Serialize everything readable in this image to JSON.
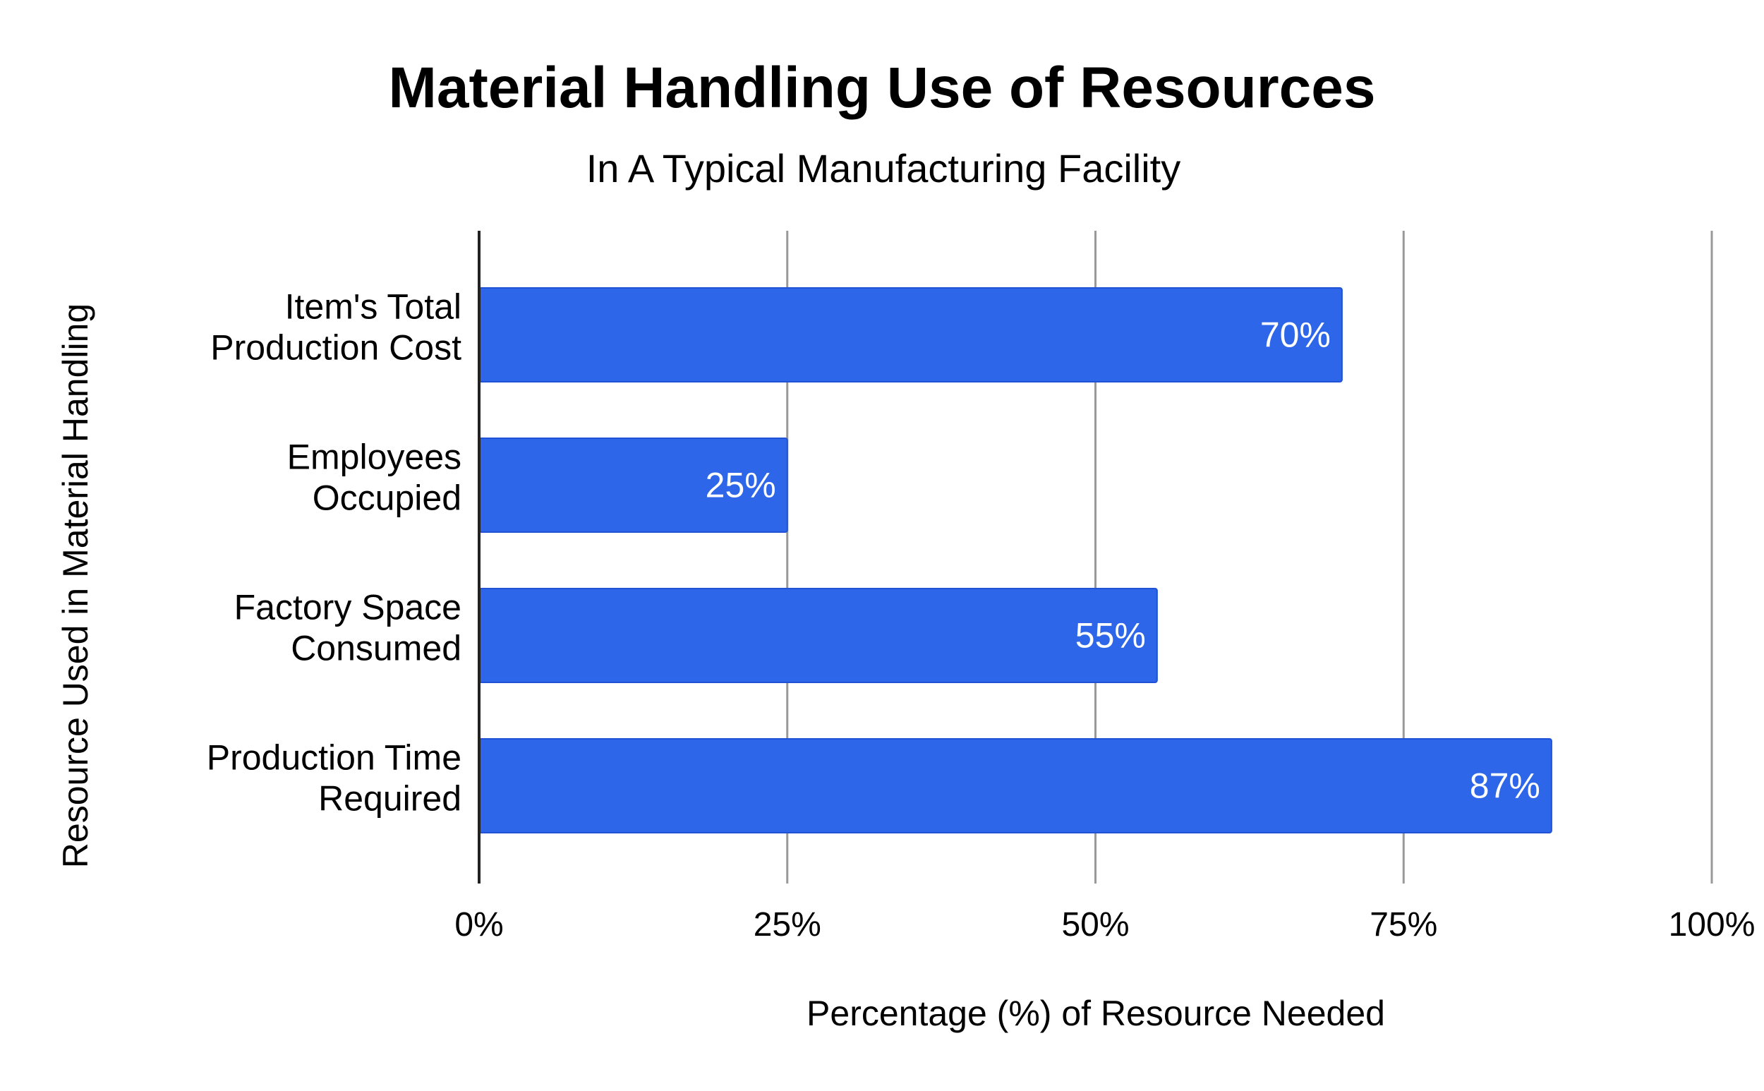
{
  "chart_data": {
    "type": "bar",
    "orientation": "horizontal",
    "title": "Material Handling Use of Resources",
    "subtitle": "In A Typical Manufacturing Facility",
    "xlabel": "Percentage (%) of Resource Needed",
    "ylabel": "Resource Used in Material Handling",
    "categories": [
      [
        "Item's Total",
        "Production Cost"
      ],
      [
        "Employees",
        "Occupied"
      ],
      [
        "Factory Space",
        "Consumed"
      ],
      [
        "Production Time",
        "Required"
      ]
    ],
    "values": [
      70,
      25,
      55,
      87
    ],
    "data_labels": [
      "70%",
      "25%",
      "55%",
      "87%"
    ],
    "xlim": [
      0,
      100
    ],
    "x_ticks": [
      0,
      25,
      50,
      75,
      100
    ],
    "x_tick_labels": [
      "0%",
      "25%",
      "50%",
      "75%",
      "100%"
    ],
    "grid": true,
    "legend": "none",
    "colors": {
      "bar": "#2d66e8",
      "bar_outline": "#1f52d4",
      "bar_label": "#ffffff",
      "gridline": "#999999",
      "axis": "#222222",
      "text": "#000000"
    }
  }
}
